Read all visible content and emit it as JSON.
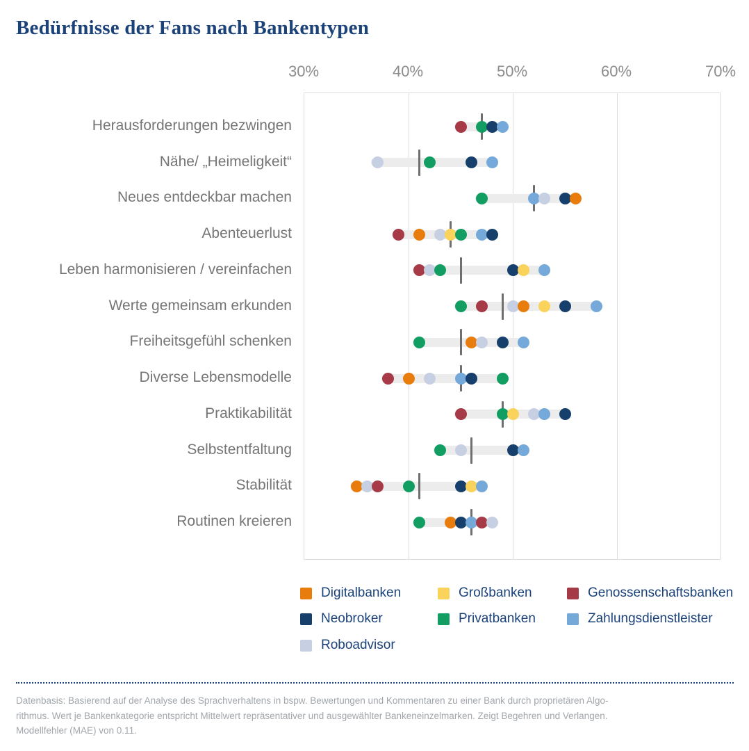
{
  "title": "Bedürfnisse der Fans nach Bankentypen",
  "colors": {
    "navy_text": "#1B4279",
    "grid": "#DCDCDC",
    "range_bar": "#ECECEC",
    "median_tick": "#6F6F6F",
    "axis_text": "#8C8C8C",
    "category_text": "#757575",
    "footnote_text": "#A1A6AB"
  },
  "chart_data": {
    "type": "scatter",
    "title": "Bedürfnisse der Fans nach Bankentypen",
    "xlabel": "",
    "ylabel": "",
    "xlim": [
      30,
      70
    ],
    "x_tick_labels": [
      "30%",
      "40%",
      "50%",
      "60%",
      "70%"
    ],
    "x_tick_values": [
      30,
      40,
      50,
      60,
      70
    ],
    "grid": "vertical",
    "legend_position": "bottom",
    "series_note": "each row shows one dot per bank type, a light gray band spanning min to max, and a dark vertical marker",
    "banks": [
      {
        "name": "Digitalbanken",
        "color": "#E87D0E"
      },
      {
        "name": "Großbanken",
        "color": "#F9D35B"
      },
      {
        "name": "Genossenschaftsbanken",
        "color": "#A63A47"
      },
      {
        "name": "Neobroker",
        "color": "#163F6C"
      },
      {
        "name": "Privatbanken",
        "color": "#129E62"
      },
      {
        "name": "Zahlungsdienstleister",
        "color": "#74A9D9"
      },
      {
        "name": "Roboadvisor",
        "color": "#C7CFE3"
      }
    ],
    "rows": [
      {
        "label": "Herausforderungen bezwingen",
        "marker": 47,
        "points": [
          {
            "bank": "Genossenschaftsbanken",
            "value": 45
          },
          {
            "bank": "Privatbanken",
            "value": 47
          },
          {
            "bank": "Neobroker",
            "value": 48
          },
          {
            "bank": "Zahlungsdienstleister",
            "value": 49
          }
        ]
      },
      {
        "label": "Nähe/ „Heimeligkeit“",
        "marker": 41,
        "points": [
          {
            "bank": "Roboadvisor",
            "value": 37
          },
          {
            "bank": "Privatbanken",
            "value": 42
          },
          {
            "bank": "Neobroker",
            "value": 46
          },
          {
            "bank": "Zahlungsdienstleister",
            "value": 48
          }
        ]
      },
      {
        "label": "Neues entdeckbar machen",
        "marker": 52,
        "points": [
          {
            "bank": "Privatbanken",
            "value": 47
          },
          {
            "bank": "Zahlungsdienstleister",
            "value": 52
          },
          {
            "bank": "Roboadvisor",
            "value": 53
          },
          {
            "bank": "Neobroker",
            "value": 55
          },
          {
            "bank": "Digitalbanken",
            "value": 56
          }
        ]
      },
      {
        "label": "Abenteuerlust",
        "marker": 44,
        "points": [
          {
            "bank": "Genossenschaftsbanken",
            "value": 39
          },
          {
            "bank": "Digitalbanken",
            "value": 41
          },
          {
            "bank": "Roboadvisor",
            "value": 43
          },
          {
            "bank": "Großbanken",
            "value": 44
          },
          {
            "bank": "Privatbanken",
            "value": 45
          },
          {
            "bank": "Zahlungsdienstleister",
            "value": 47
          },
          {
            "bank": "Neobroker",
            "value": 48
          }
        ]
      },
      {
        "label": "Leben harmonisieren / vereinfachen",
        "marker": 45,
        "points": [
          {
            "bank": "Genossenschaftsbanken",
            "value": 41
          },
          {
            "bank": "Roboadvisor",
            "value": 42
          },
          {
            "bank": "Privatbanken",
            "value": 43
          },
          {
            "bank": "Neobroker",
            "value": 50
          },
          {
            "bank": "Großbanken",
            "value": 51
          },
          {
            "bank": "Zahlungsdienstleister",
            "value": 53
          }
        ]
      },
      {
        "label": "Werte gemeinsam erkunden",
        "marker": 49,
        "points": [
          {
            "bank": "Privatbanken",
            "value": 45
          },
          {
            "bank": "Genossenschaftsbanken",
            "value": 47
          },
          {
            "bank": "Roboadvisor",
            "value": 50
          },
          {
            "bank": "Digitalbanken",
            "value": 51
          },
          {
            "bank": "Großbanken",
            "value": 53
          },
          {
            "bank": "Neobroker",
            "value": 55
          },
          {
            "bank": "Zahlungsdienstleister",
            "value": 58
          }
        ]
      },
      {
        "label": "Freiheitsgefühl schenken",
        "marker": 45,
        "points": [
          {
            "bank": "Privatbanken",
            "value": 41
          },
          {
            "bank": "Digitalbanken",
            "value": 46
          },
          {
            "bank": "Roboadvisor",
            "value": 47
          },
          {
            "bank": "Neobroker",
            "value": 49
          },
          {
            "bank": "Zahlungsdienstleister",
            "value": 51
          }
        ]
      },
      {
        "label": "Diverse Lebensmodelle",
        "marker": 45,
        "points": [
          {
            "bank": "Genossenschaftsbanken",
            "value": 38
          },
          {
            "bank": "Digitalbanken",
            "value": 40
          },
          {
            "bank": "Roboadvisor",
            "value": 42
          },
          {
            "bank": "Zahlungsdienstleister",
            "value": 45
          },
          {
            "bank": "Neobroker",
            "value": 46
          },
          {
            "bank": "Privatbanken",
            "value": 49
          }
        ]
      },
      {
        "label": "Praktikabilität",
        "marker": 49,
        "points": [
          {
            "bank": "Genossenschaftsbanken",
            "value": 45
          },
          {
            "bank": "Privatbanken",
            "value": 49
          },
          {
            "bank": "Großbanken",
            "value": 50
          },
          {
            "bank": "Roboadvisor",
            "value": 52
          },
          {
            "bank": "Zahlungsdienstleister",
            "value": 53
          },
          {
            "bank": "Neobroker",
            "value": 55
          }
        ]
      },
      {
        "label": "Selbstentfaltung",
        "marker": 46,
        "points": [
          {
            "bank": "Privatbanken",
            "value": 43
          },
          {
            "bank": "Roboadvisor",
            "value": 45
          },
          {
            "bank": "Neobroker",
            "value": 50
          },
          {
            "bank": "Zahlungsdienstleister",
            "value": 51
          }
        ]
      },
      {
        "label": "Stabilität",
        "marker": 41,
        "points": [
          {
            "bank": "Digitalbanken",
            "value": 35
          },
          {
            "bank": "Roboadvisor",
            "value": 36
          },
          {
            "bank": "Genossenschaftsbanken",
            "value": 37
          },
          {
            "bank": "Privatbanken",
            "value": 40
          },
          {
            "bank": "Neobroker",
            "value": 45
          },
          {
            "bank": "Großbanken",
            "value": 46
          },
          {
            "bank": "Zahlungsdienstleister",
            "value": 47
          }
        ]
      },
      {
        "label": "Routinen kreieren",
        "marker": 46,
        "points": [
          {
            "bank": "Privatbanken",
            "value": 41
          },
          {
            "bank": "Digitalbanken",
            "value": 44
          },
          {
            "bank": "Neobroker",
            "value": 45
          },
          {
            "bank": "Zahlungsdienstleister",
            "value": 46
          },
          {
            "bank": "Genossenschaftsbanken",
            "value": 47
          },
          {
            "bank": "Roboadvisor",
            "value": 48
          }
        ]
      }
    ]
  },
  "footnote": {
    "lines": [
      "Datenbasis: Basierend auf der Analyse des Sprachverhaltens in bspw. Bewertungen und Kommentaren zu einer Bank durch proprietären Algo-",
      "rithmus. Wert je Bankenkategorie entspricht Mittelwert repräsentativer und ausgewählter Bankeneinzelmarken. Zeigt Begehren und Verlangen.",
      "Modellfehler (MAE) von 0.11."
    ]
  }
}
